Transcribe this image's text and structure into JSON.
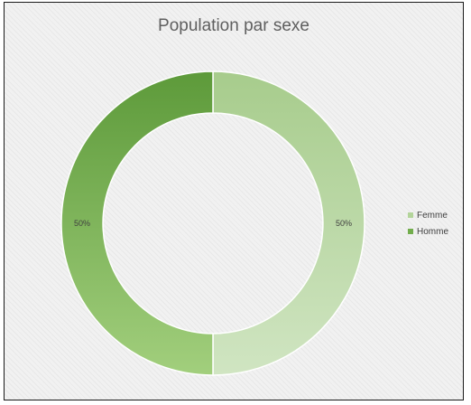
{
  "chart_data": {
    "type": "pie",
    "title": "Population par sexe",
    "donut": true,
    "legend_position": "right",
    "slices": [
      {
        "name": "Femme",
        "value": 50,
        "label": "50%",
        "color": "#b3d49a",
        "gradient": [
          "#a7cc8c",
          "#d0e5c2"
        ]
      },
      {
        "name": "Homme",
        "value": 50,
        "label": "50%",
        "color": "#72ad4c",
        "gradient": [
          "#5d9a3a",
          "#a2cf7d"
        ]
      }
    ]
  }
}
